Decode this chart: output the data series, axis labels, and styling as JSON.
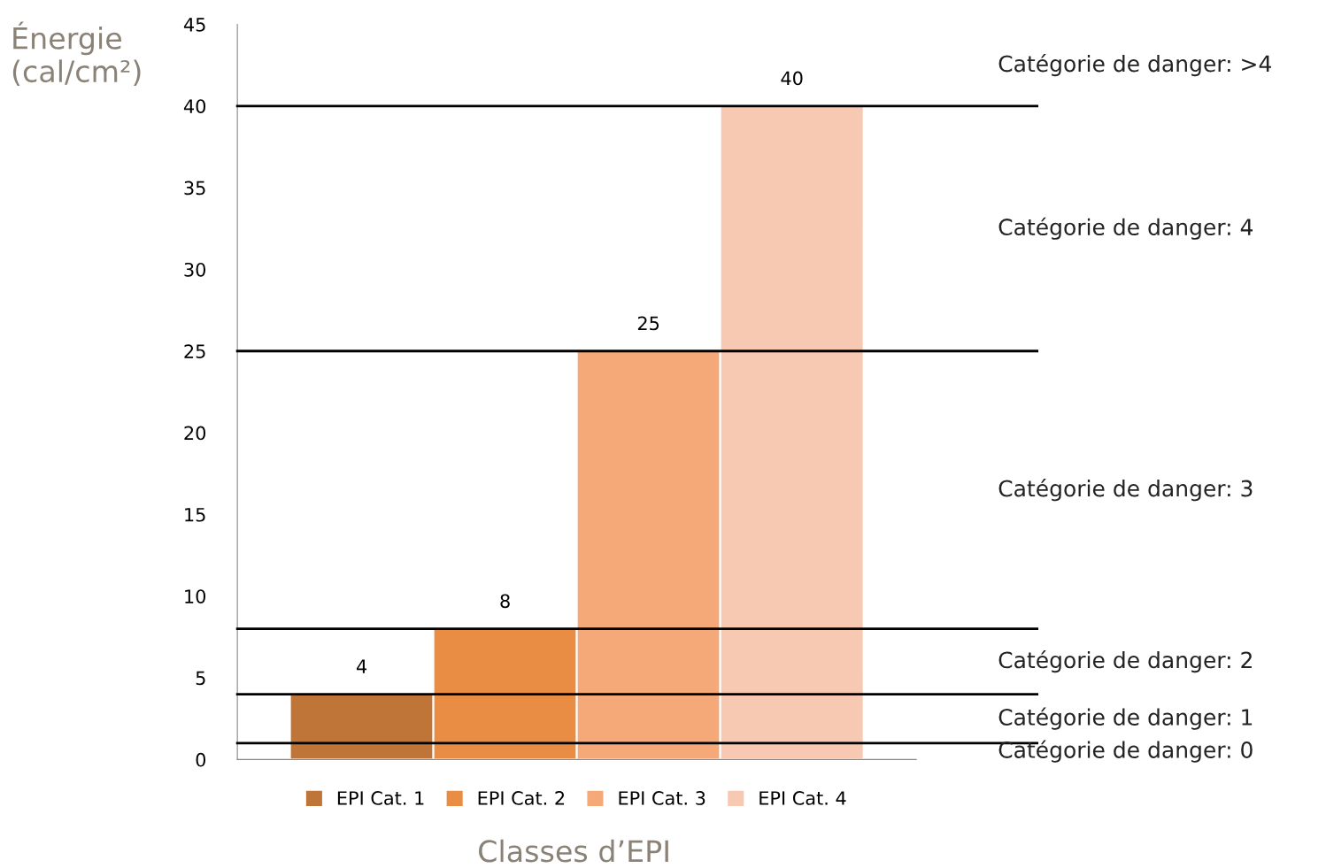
{
  "chart_data": {
    "type": "bar",
    "ylabel": "Énergie\n(cal/cm²)",
    "xlabel": "Classes d’EPI",
    "categories": [
      null
    ],
    "series": [
      {
        "name": "EPI Cat. 1",
        "color": "#c07538",
        "values": [
          4
        ]
      },
      {
        "name": "EPI Cat. 2",
        "color": "#e88d43",
        "values": [
          8
        ]
      },
      {
        "name": "EPI Cat. 3",
        "color": "#f5a878",
        "values": [
          25
        ]
      },
      {
        "name": "EPI Cat. 4",
        "color": "#f7c9b2",
        "values": [
          40
        ]
      }
    ],
    "ylim": [
      0,
      45
    ],
    "yticks": [
      0,
      5,
      10,
      15,
      20,
      25,
      30,
      35,
      40,
      45
    ],
    "data_labels": true,
    "grid": false,
    "legend": "bottom",
    "ref_lines": [
      {
        "axis": "y",
        "value": 1,
        "color": "#000000"
      },
      {
        "axis": "y",
        "value": 4,
        "color": "#000000"
      },
      {
        "axis": "y",
        "value": 8,
        "color": "#000000"
      },
      {
        "axis": "y",
        "value": 25,
        "color": "#000000"
      },
      {
        "axis": "y",
        "value": 40,
        "color": "#000000"
      }
    ],
    "annotations": [
      "Catégorie de danger: >4",
      "Catégorie de danger: 4",
      "Catégorie de danger: 3",
      "Catégorie de danger: 2",
      "Catégorie de danger: 1",
      "Catégorie de danger: 0"
    ]
  }
}
